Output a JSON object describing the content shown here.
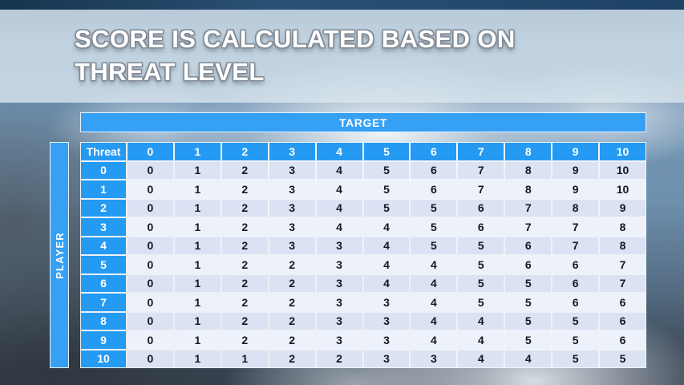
{
  "slide": {
    "title_lines": [
      "SCORE IS CALCULATED BASED ON",
      "THREAT LEVEL"
    ]
  },
  "colors": {
    "accent_blue": "#259af3",
    "bar_blue": "#35a0f4",
    "row_shade_dark": "#dae2f4",
    "row_shade_light": "#edf1fa",
    "grid_line": "#f6f9fc",
    "cell_text": "#14181f",
    "header_text": "#ffffff",
    "banner_overlay": "#dde8f0",
    "top_strip": "#1d4265"
  },
  "chart_data": {
    "type": "table",
    "title": "SCORE IS CALCULATED BASED ON THREAT LEVEL",
    "column_axis_label": "TARGET",
    "row_axis_label": "PLAYER",
    "corner_label": "Threat",
    "columns": [
      0,
      1,
      2,
      3,
      4,
      5,
      6,
      7,
      8,
      9,
      10
    ],
    "rows": [
      0,
      1,
      2,
      3,
      4,
      5,
      6,
      7,
      8,
      9,
      10
    ],
    "matrix": [
      [
        0,
        1,
        2,
        3,
        4,
        5,
        6,
        7,
        8,
        9,
        10
      ],
      [
        0,
        1,
        2,
        3,
        4,
        5,
        6,
        7,
        8,
        9,
        10
      ],
      [
        0,
        1,
        2,
        3,
        4,
        5,
        5,
        6,
        7,
        8,
        9
      ],
      [
        0,
        1,
        2,
        3,
        4,
        4,
        5,
        6,
        7,
        7,
        8
      ],
      [
        0,
        1,
        2,
        3,
        3,
        4,
        5,
        5,
        6,
        7,
        8
      ],
      [
        0,
        1,
        2,
        2,
        3,
        4,
        4,
        5,
        6,
        6,
        7
      ],
      [
        0,
        1,
        2,
        2,
        3,
        4,
        4,
        5,
        5,
        6,
        7
      ],
      [
        0,
        1,
        2,
        2,
        3,
        3,
        4,
        5,
        5,
        6,
        6
      ],
      [
        0,
        1,
        2,
        2,
        3,
        3,
        4,
        4,
        5,
        5,
        6
      ],
      [
        0,
        1,
        2,
        2,
        3,
        3,
        4,
        4,
        5,
        5,
        6
      ],
      [
        0,
        1,
        1,
        2,
        2,
        3,
        3,
        4,
        4,
        5,
        5
      ]
    ]
  }
}
